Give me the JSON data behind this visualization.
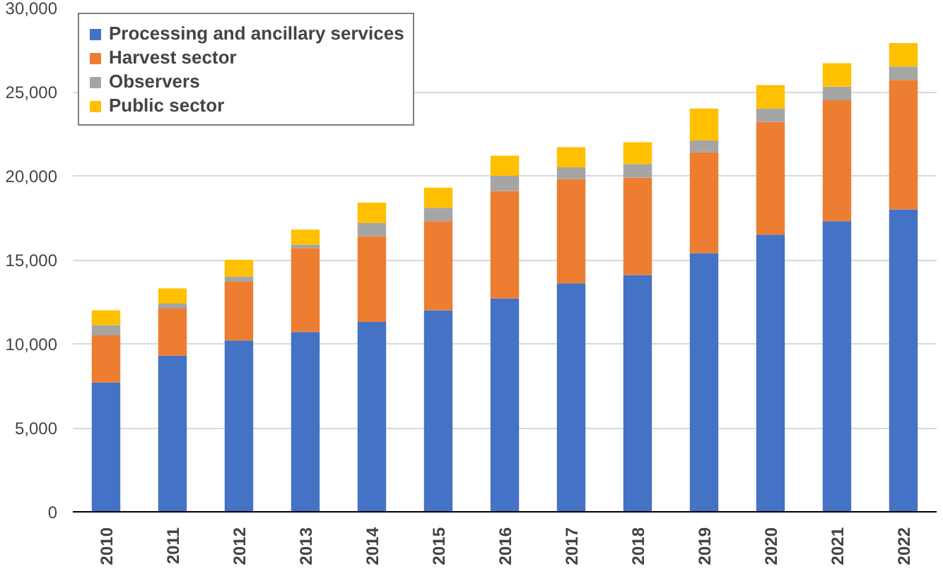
{
  "chart_data": {
    "type": "bar",
    "stacked": true,
    "categories": [
      "2010",
      "2011",
      "2012",
      "2013",
      "2014",
      "2015",
      "2016",
      "2017",
      "2018",
      "2019",
      "2020",
      "2021",
      "2022"
    ],
    "series": [
      {
        "name": "Processing and ancillary services",
        "color": "#4472c4",
        "values": [
          7700,
          9300,
          10200,
          10700,
          11300,
          12000,
          12700,
          13600,
          14100,
          15400,
          16500,
          17300,
          18000
        ]
      },
      {
        "name": "Harvest sector",
        "color": "#ed7d31",
        "values": [
          2800,
          2800,
          3500,
          5000,
          5100,
          5300,
          6400,
          6200,
          5800,
          6000,
          6700,
          7200,
          7700
        ]
      },
      {
        "name": "Observers",
        "color": "#a5a5a5",
        "values": [
          600,
          300,
          300,
          200,
          800,
          800,
          900,
          700,
          800,
          700,
          800,
          800,
          800
        ]
      },
      {
        "name": "Public sector",
        "color": "#ffc000",
        "values": [
          900,
          900,
          1000,
          900,
          1200,
          1200,
          1200,
          1200,
          1300,
          1900,
          1400,
          1400,
          1400
        ]
      }
    ],
    "ylim": [
      0,
      30000
    ],
    "yticks": [
      {
        "value": 0,
        "label": "0"
      },
      {
        "value": 5000,
        "label": "5,000"
      },
      {
        "value": 10000,
        "label": "10,000"
      },
      {
        "value": 15000,
        "label": "15,000"
      },
      {
        "value": 20000,
        "label": "20,000"
      },
      {
        "value": 25000,
        "label": "25,000"
      },
      {
        "value": 30000,
        "label": "30,000"
      }
    ],
    "grid": "y",
    "legend": "top left"
  }
}
